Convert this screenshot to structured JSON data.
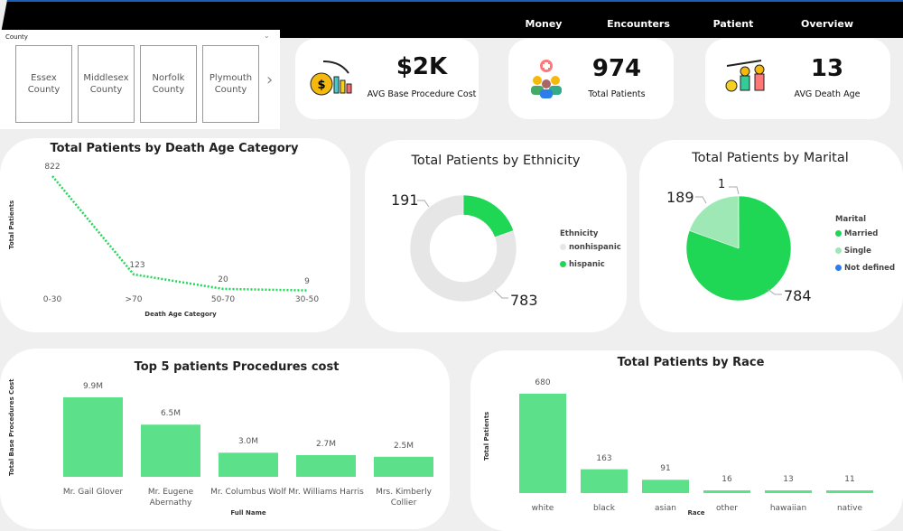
{
  "nav": {
    "items": [
      "Money",
      "Encounters",
      "Patient",
      "Overview"
    ]
  },
  "slicer": {
    "title": "County",
    "items": [
      "Essex County",
      "Middlesex County",
      "Norfolk County",
      "Plymouth County"
    ]
  },
  "kpis": [
    {
      "value": "$2K",
      "label": "AVG Base Procedure Cost",
      "icon": "money-bag-chart-icon"
    },
    {
      "value": "974",
      "label": "Total Patients",
      "icon": "patients-group-icon"
    },
    {
      "value": "13",
      "label": "AVG Death Age",
      "icon": "aging-people-icon"
    }
  ],
  "colors": {
    "accent": "#1fd655",
    "bar": "#5ce08a",
    "light": "#9ee8b5",
    "gray": "#e6e6e6",
    "blue": "#2b7de9"
  },
  "chart_data": [
    {
      "type": "line",
      "title": "Total Patients by Death Age Category",
      "xlabel": "Death Age Category",
      "ylabel": "Total Patients",
      "categories": [
        "0-30",
        ">70",
        "50-70",
        "30-50"
      ],
      "values": [
        822,
        123,
        20,
        9
      ]
    },
    {
      "type": "pie",
      "donut": true,
      "title": "Total Patients by Ethnicity",
      "legend_title": "Ethnicity",
      "legend": "right",
      "slices": [
        {
          "name": "hispanic",
          "value": 191
        },
        {
          "name": "nonhispanic",
          "value": 783
        }
      ],
      "legend_order": [
        "nonhispanic",
        "hispanic"
      ]
    },
    {
      "type": "pie",
      "title": "Total Patients by Marital",
      "legend_title": "Marital",
      "legend": "right",
      "slices": [
        {
          "name": "Married",
          "value": 784
        },
        {
          "name": "Single",
          "value": 189
        },
        {
          "name": "Not defined",
          "value": 1
        }
      ]
    },
    {
      "type": "bar",
      "title": "Top 5 patients Procedures cost",
      "xlabel": "Full Name",
      "ylabel": "Total Base Procedures Cost",
      "categories": [
        "Mr. Gail Glover",
        "Mr. Eugene Abernathy",
        "Mr. Columbus Wolf",
        "Mr. Williams Harris",
        "Mrs. Kimberly Collier"
      ],
      "values": [
        9.9,
        6.5,
        3.0,
        2.7,
        2.5
      ],
      "labels": [
        "9.9M",
        "6.5M",
        "3.0M",
        "2.7M",
        "2.5M"
      ],
      "unit": "M"
    },
    {
      "type": "bar",
      "title": "Total Patients by Race",
      "xlabel": "Race",
      "ylabel": "Total Patients",
      "categories": [
        "white",
        "black",
        "asian",
        "other",
        "hawaiian",
        "native"
      ],
      "values": [
        680,
        163,
        91,
        16,
        13,
        11
      ]
    }
  ]
}
